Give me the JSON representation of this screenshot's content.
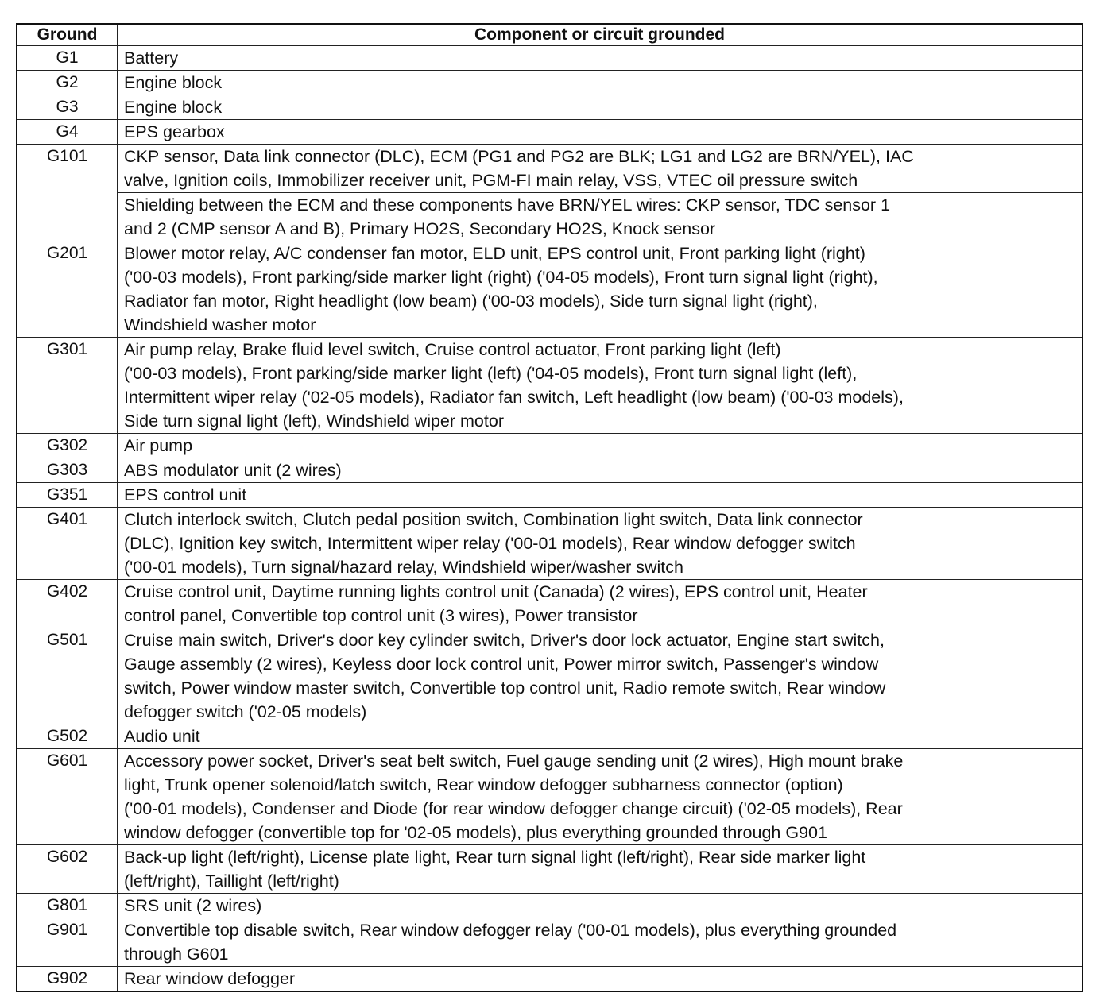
{
  "headers": {
    "ground": "Ground",
    "component": "Component or circuit grounded"
  },
  "rows": [
    {
      "ground": "G1",
      "sections": [
        [
          "Battery"
        ]
      ]
    },
    {
      "ground": "G2",
      "sections": [
        [
          "Engine block"
        ]
      ]
    },
    {
      "ground": "G3",
      "sections": [
        [
          "Engine block"
        ]
      ]
    },
    {
      "ground": "G4",
      "sections": [
        [
          "EPS gearbox"
        ]
      ]
    },
    {
      "ground": "G101",
      "sections": [
        [
          "CKP sensor, Data link connector (DLC), ECM (PG1 and PG2 are BLK; LG1 and LG2 are BRN/YEL), IAC",
          "valve, Ignition coils, Immobilizer receiver unit, PGM-FI main relay, VSS, VTEC oil pressure switch"
        ],
        [
          "Shielding between the ECM and these components have BRN/YEL wires: CKP sensor, TDC sensor 1",
          "and 2 (CMP sensor A and B), Primary HO2S, Secondary HO2S, Knock sensor"
        ]
      ]
    },
    {
      "ground": "G201",
      "sections": [
        [
          "Blower motor relay, A/C condenser fan motor, ELD unit, EPS control unit, Front parking light (right)",
          "('00-03 models), Front parking/side marker light (right) ('04-05 models), Front turn signal light (right),",
          "Radiator fan motor, Right headlight (low beam) ('00-03 models), Side turn signal light (right),",
          "Windshield washer motor"
        ]
      ]
    },
    {
      "ground": "G301",
      "sections": [
        [
          "Air pump relay, Brake fluid level switch, Cruise control actuator, Front parking light (left)",
          "('00-03 models), Front parking/side marker light (left) ('04-05 models), Front turn signal light (left),",
          "Intermittent wiper relay ('02-05 models), Radiator fan switch, Left headlight (low beam) ('00-03 models),",
          "Side turn signal light (left), Windshield wiper motor"
        ]
      ]
    },
    {
      "ground": "G302",
      "sections": [
        [
          "Air pump"
        ]
      ]
    },
    {
      "ground": "G303",
      "sections": [
        [
          "ABS modulator unit (2 wires)"
        ]
      ]
    },
    {
      "ground": "G351",
      "sections": [
        [
          "EPS control unit"
        ]
      ]
    },
    {
      "ground": "G401",
      "sections": [
        [
          "Clutch interlock switch, Clutch pedal position switch, Combination light switch, Data link connector",
          "(DLC), Ignition key switch, Intermittent wiper relay ('00-01 models), Rear window defogger switch",
          "('00-01 models), Turn signal/hazard relay, Windshield wiper/washer switch"
        ]
      ]
    },
    {
      "ground": "G402",
      "sections": [
        [
          "Cruise control unit, Daytime running lights control unit (Canada) (2 wires), EPS control unit, Heater",
          "control panel, Convertible top control unit (3 wires), Power transistor"
        ]
      ]
    },
    {
      "ground": "G501",
      "sections": [
        [
          "Cruise main switch, Driver's door key cylinder switch, Driver's door lock actuator, Engine start switch,",
          "Gauge assembly (2 wires), Keyless door lock control unit, Power mirror switch, Passenger's window",
          "switch, Power window master switch, Convertible top control unit, Radio remote switch, Rear window",
          "defogger switch ('02-05 models)"
        ]
      ]
    },
    {
      "ground": "G502",
      "sections": [
        [
          "Audio unit"
        ]
      ]
    },
    {
      "ground": "G601",
      "sections": [
        [
          "Accessory power socket, Driver's seat belt switch, Fuel gauge sending unit (2 wires), High mount brake",
          "light, Trunk opener solenoid/latch switch, Rear window defogger subharness connector (option)",
          "('00-01 models), Condenser and Diode (for rear window defogger change circuit) ('02-05 models), Rear",
          "window defogger (convertible top for '02-05 models), plus everything grounded through G901"
        ]
      ]
    },
    {
      "ground": "G602",
      "sections": [
        [
          "Back-up light (left/right), License plate light, Rear turn signal light (left/right), Rear side marker light",
          "(left/right), Taillight (left/right)"
        ]
      ]
    },
    {
      "ground": "G801",
      "sections": [
        [
          "SRS unit (2 wires)"
        ]
      ]
    },
    {
      "ground": "G901",
      "sections": [
        [
          "Convertible top disable switch, Rear window defogger relay ('00-01 models), plus everything grounded",
          "through G601"
        ]
      ]
    },
    {
      "ground": "G902",
      "sections": [
        [
          "Rear window defogger"
        ]
      ]
    }
  ]
}
